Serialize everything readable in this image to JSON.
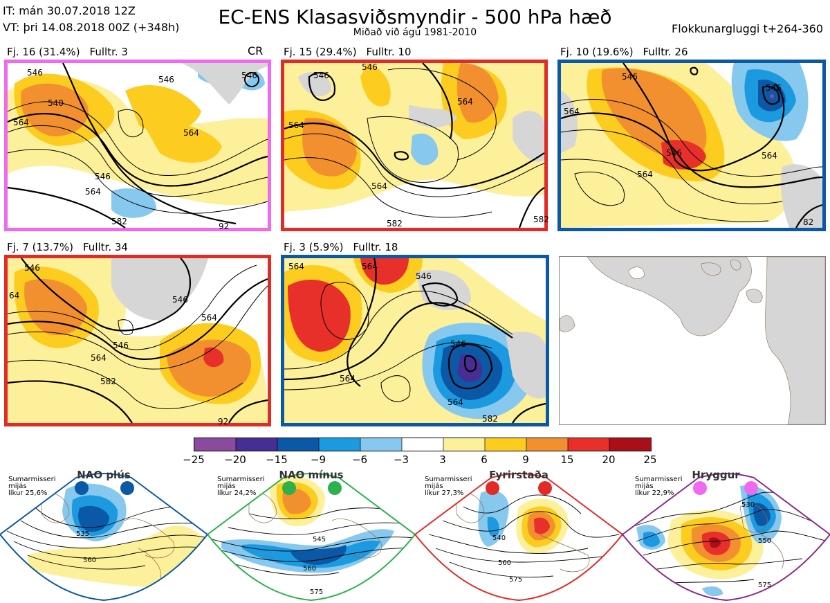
{
  "header": {
    "it_line": "IT: mán 30.07.2018 12Z",
    "vt_line": "VT: þri 14.08.2018 00Z  (+348h)",
    "title": "EC-ENS Klasasviðsmyndir - 500 hPa hæð",
    "subtitle": "Miðað við ágú 1981-2010",
    "window": "Flokkunargluggi t+264-360"
  },
  "clusters": [
    {
      "label": "Fj. 16 (31.4%)",
      "members": "Fulltr. 3",
      "tag": "CR",
      "regime": "Hryggur",
      "frame_color": "#ee6aee"
    },
    {
      "label": "Fj. 15 (29.4%)",
      "members": "Fulltr. 10",
      "tag": "",
      "regime": "Fyrirstaða",
      "frame_color": "#e32b26"
    },
    {
      "label": "Fj. 10 (19.6%)",
      "members": "Fulltr. 26",
      "tag": "",
      "regime": "NAO plús",
      "frame_color": "#0b58a6"
    },
    {
      "label": "Fj. 7 (13.7%)",
      "members": "Fulltr. 34",
      "tag": "",
      "regime": "Fyrirstaða",
      "frame_color": "#e32b26"
    },
    {
      "label": "Fj. 3 (5.9%)",
      "members": "Fulltr. 18",
      "tag": "",
      "regime": "NAO plús",
      "frame_color": "#0b58a6"
    }
  ],
  "contour_labels": {
    "p1": [
      "546",
      "540",
      "546",
      "546",
      "564",
      "564",
      "546",
      "564",
      "582",
      "92"
    ],
    "p2": [
      "546",
      "546",
      "564",
      "564",
      "564",
      "582",
      "582"
    ],
    "p3": [
      "546",
      "564",
      "546",
      "546",
      "564",
      "564",
      "82"
    ],
    "p4": [
      "546",
      "64",
      "546",
      "546",
      "564",
      "564",
      "582",
      "92"
    ],
    "p5": [
      "564",
      "564",
      "546",
      "546",
      "564",
      "564",
      "582"
    ]
  },
  "colorbar": {
    "ticks": [
      "−25",
      "−20",
      "−15",
      "−9",
      "−6",
      "−3",
      "3",
      "6",
      "9",
      "15",
      "20",
      "25"
    ],
    "colors": [
      "#8a4a9e",
      "#472e92",
      "#0b58a6",
      "#1c9ae0",
      "#86c8ee",
      "#ffffff",
      "#fdf09a",
      "#fccd1f",
      "#f2902f",
      "#e8302b",
      "#a80f19"
    ]
  },
  "regimes": [
    {
      "name": "NAO plús",
      "season": "Sumarmisseri",
      "period": "mijás",
      "prob": "líkur 25,6%",
      "color": "#0b58a6",
      "labels": [
        "535",
        "560"
      ]
    },
    {
      "name": "NAO mínus",
      "season": "Sumarmisseri",
      "period": "mijás",
      "prob": "líkur 24,2%",
      "color": "#2bb24c",
      "labels": [
        "545",
        "560",
        "575"
      ]
    },
    {
      "name": "Fyrirstaða",
      "season": "Sumarmisseri",
      "period": "mijás",
      "prob": "líkur 27,3%",
      "color": "#e32b26",
      "labels": [
        "540",
        "560",
        "575"
      ]
    },
    {
      "name": "Hryggur",
      "season": "Sumarmisseri",
      "period": "mijás",
      "prob": "líkur 22,9%",
      "color": "#ee6aee",
      "labels": [
        "530",
        "550",
        "575"
      ]
    }
  ]
}
